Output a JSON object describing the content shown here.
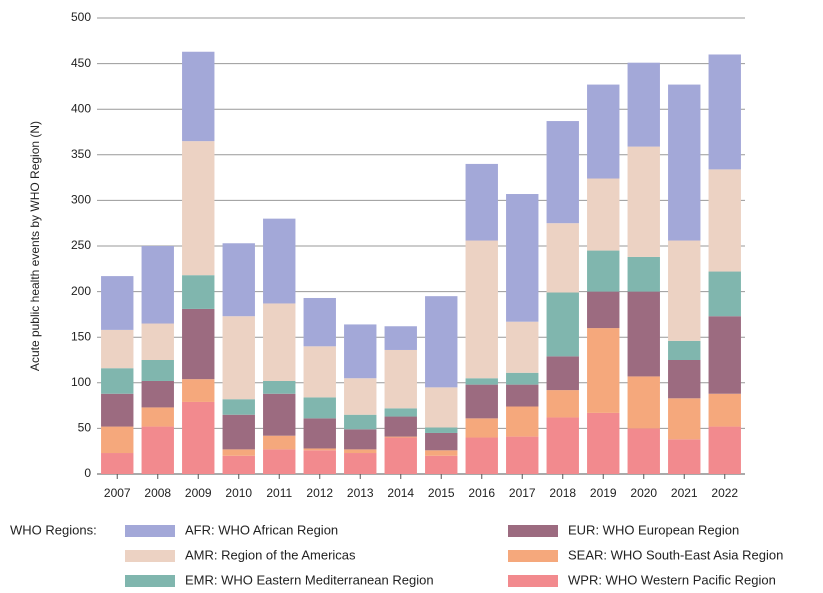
{
  "chart_data": {
    "type": "bar",
    "stacked": true,
    "y_label": "Acute public health events by WHO Region (N)",
    "legend_title": "WHO Regions:",
    "categories": [
      "2007",
      "2008",
      "2009",
      "2010",
      "2011",
      "2012",
      "2013",
      "2014",
      "2015",
      "2016",
      "2017",
      "2018",
      "2019",
      "2020",
      "2021",
      "2022"
    ],
    "series": [
      {
        "name": "AFR: WHO African Region",
        "color": "#a3a8d8",
        "values": [
          59,
          85,
          98,
          80,
          93,
          53,
          59,
          26,
          100,
          84,
          140,
          112,
          103,
          92,
          171,
          126
        ]
      },
      {
        "name": "AMR: Region of the Americas",
        "color": "#ecd2c3",
        "values": [
          42,
          40,
          147,
          91,
          85,
          56,
          40,
          64,
          44,
          151,
          56,
          76,
          79,
          121,
          110,
          112
        ]
      },
      {
        "name": "EMR: WHO Eastern Mediterranean Region",
        "color": "#80b6ae",
        "values": [
          28,
          23,
          37,
          17,
          14,
          23,
          16,
          9,
          6,
          7,
          13,
          70,
          45,
          38,
          21,
          49
        ]
      },
      {
        "name": "EUR: WHO European Region",
        "color": "#9c6b80",
        "values": [
          36,
          29,
          77,
          38,
          46,
          33,
          22,
          22,
          19,
          37,
          24,
          37,
          40,
          93,
          42,
          85
        ]
      },
      {
        "name": "SEAR: WHO South-East Asia Region",
        "color": "#f5a87c",
        "values": [
          29,
          21,
          25,
          7,
          15,
          2,
          4,
          1,
          6,
          21,
          33,
          30,
          93,
          57,
          45,
          36
        ]
      },
      {
        "name": "WPR: WHO Western Pacific Region",
        "color": "#f28a8e",
        "values": [
          23,
          52,
          79,
          20,
          27,
          26,
          23,
          40,
          20,
          40,
          41,
          62,
          67,
          50,
          38,
          52
        ]
      }
    ],
    "ylim": [
      0,
      500
    ],
    "yticks": [
      0,
      50,
      100,
      150,
      200,
      250,
      300,
      350,
      400,
      450,
      500
    ],
    "grid": true
  }
}
